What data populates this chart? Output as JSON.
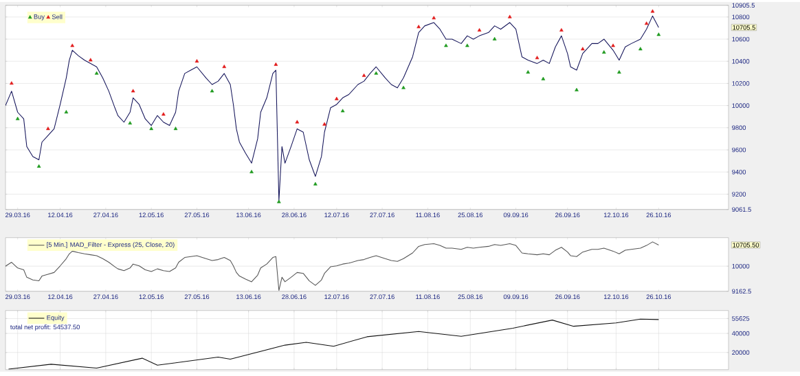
{
  "chart_data": [
    {
      "type": "line",
      "xlim": [
        "2016-03-25",
        "2016-11-18"
      ],
      "ylim": [
        9061.5,
        10905.5
      ],
      "xticks": [
        {
          "value": "2016-03-29",
          "label": "29.03.16"
        },
        {
          "value": "2016-04-12",
          "label": "12.04.16"
        },
        {
          "value": "2016-04-27",
          "label": "27.04.16"
        },
        {
          "value": "2016-05-12",
          "label": "12.05.16"
        },
        {
          "value": "2016-05-27",
          "label": "27.05.16"
        },
        {
          "value": "2016-06-13",
          "label": "13.06.16"
        },
        {
          "value": "2016-06-28",
          "label": "28.06.16"
        },
        {
          "value": "2016-07-12",
          "label": "12.07.16"
        },
        {
          "value": "2016-07-27",
          "label": "27.07.16"
        },
        {
          "value": "2016-08-11",
          "label": "11.08.16"
        },
        {
          "value": "2016-08-25",
          "label": "25.08.16"
        },
        {
          "value": "2016-09-09",
          "label": "09.09.16"
        },
        {
          "value": "2016-09-26",
          "label": "26.09.16"
        },
        {
          "value": "2016-10-12",
          "label": "12.10.16"
        },
        {
          "value": "2016-10-26",
          "label": "26.10.16"
        }
      ],
      "yticks": [
        9061.5,
        9200,
        9400,
        9600,
        9800,
        10000,
        10200,
        10400,
        10600,
        10800,
        10905.5
      ],
      "grid": "y",
      "legend": "top left",
      "annotations": [
        "10705.5"
      ],
      "series": [
        {
          "color": "#14145a",
          "x": [
            "2016-03-25",
            "2016-03-27",
            "2016-03-29",
            "2016-03-31",
            "2016-04-01",
            "2016-04-03",
            "2016-04-05",
            "2016-04-06",
            "2016-04-08",
            "2016-04-10",
            "2016-04-12",
            "2016-04-14",
            "2016-04-15",
            "2016-04-16",
            "2016-04-18",
            "2016-04-20",
            "2016-04-22",
            "2016-04-24",
            "2016-04-26",
            "2016-04-28",
            "2016-04-30",
            "2016-05-01",
            "2016-05-03",
            "2016-05-05",
            "2016-05-06",
            "2016-05-08",
            "2016-05-10",
            "2016-05-12",
            "2016-05-14",
            "2016-05-16",
            "2016-05-18",
            "2016-05-20",
            "2016-05-21",
            "2016-05-23",
            "2016-05-25",
            "2016-05-27",
            "2016-05-30",
            "2016-06-01",
            "2016-06-03",
            "2016-06-05",
            "2016-06-07",
            "2016-06-08",
            "2016-06-09",
            "2016-06-10",
            "2016-06-12",
            "2016-06-14",
            "2016-06-16",
            "2016-06-17",
            "2016-06-19",
            "2016-06-21",
            "2016-06-22",
            "2016-06-23",
            "2016-06-24",
            "2016-06-25",
            "2016-06-27",
            "2016-06-29",
            "2016-07-01",
            "2016-07-03",
            "2016-07-05",
            "2016-07-07",
            "2016-07-08",
            "2016-07-10",
            "2016-07-12",
            "2016-07-14",
            "2016-07-16",
            "2016-07-19",
            "2016-07-21",
            "2016-07-23",
            "2016-07-25",
            "2016-07-28",
            "2016-07-30",
            "2016-08-01",
            "2016-08-03",
            "2016-08-06",
            "2016-08-08",
            "2016-08-10",
            "2016-08-13",
            "2016-08-15",
            "2016-08-17",
            "2016-08-19",
            "2016-08-22",
            "2016-08-24",
            "2016-08-26",
            "2016-08-28",
            "2016-08-31",
            "2016-09-02",
            "2016-09-04",
            "2016-09-07",
            "2016-09-09",
            "2016-09-11",
            "2016-09-13",
            "2016-09-16",
            "2016-09-18",
            "2016-09-20",
            "2016-09-22",
            "2016-09-24",
            "2016-09-26",
            "2016-09-27",
            "2016-09-29",
            "2016-10-01",
            "2016-10-04",
            "2016-10-06",
            "2016-10-08",
            "2016-10-11",
            "2016-10-13",
            "2016-10-15",
            "2016-10-17",
            "2016-10-20",
            "2016-10-22",
            "2016-10-24",
            "2016-10-26"
          ],
          "values": [
            10000,
            10130,
            9940,
            9880,
            9630,
            9540,
            9510,
            9670,
            9730,
            9790,
            10010,
            10250,
            10410,
            10500,
            10450,
            10410,
            10380,
            10350,
            10250,
            10130,
            9980,
            9910,
            9850,
            9940,
            10070,
            10010,
            9880,
            9820,
            9910,
            9850,
            9820,
            9940,
            10130,
            10290,
            10320,
            10350,
            10250,
            10190,
            10220,
            10290,
            10190,
            10010,
            9790,
            9670,
            9570,
            9480,
            9700,
            9940,
            10070,
            10290,
            10320,
            9140,
            9630,
            9480,
            9630,
            9790,
            9760,
            9510,
            9360,
            9540,
            9760,
            9980,
            10010,
            10070,
            10100,
            10190,
            10220,
            10290,
            10350,
            10250,
            10190,
            10160,
            10250,
            10440,
            10660,
            10720,
            10750,
            10690,
            10600,
            10600,
            10560,
            10630,
            10600,
            10630,
            10660,
            10720,
            10690,
            10750,
            10690,
            10440,
            10410,
            10380,
            10410,
            10380,
            10530,
            10630,
            10470,
            10350,
            10320,
            10470,
            10560,
            10560,
            10600,
            10500,
            10410,
            10530,
            10560,
            10600,
            10690,
            10810,
            10705.5
          ]
        },
        {
          "name": "Buy",
          "type": "scatter",
          "marker": "triangle",
          "color": "#1f9a1f",
          "x": [
            "2016-03-29",
            "2016-04-05",
            "2016-04-14",
            "2016-04-24",
            "2016-05-05",
            "2016-05-12",
            "2016-05-20",
            "2016-06-01",
            "2016-06-14",
            "2016-06-23",
            "2016-07-05",
            "2016-07-14",
            "2016-07-25",
            "2016-08-03",
            "2016-08-17",
            "2016-08-24",
            "2016-09-02",
            "2016-09-13",
            "2016-09-18",
            "2016-09-29",
            "2016-10-08",
            "2016-10-13",
            "2016-10-20",
            "2016-10-26"
          ],
          "values": [
            9880,
            9450,
            9940,
            10290,
            9840,
            9790,
            9790,
            10130,
            9400,
            9130,
            9290,
            9950,
            10290,
            10160,
            10540,
            10540,
            10600,
            10300,
            10240,
            10140,
            10480,
            10300,
            10510,
            10640
          ]
        },
        {
          "name": "Sell",
          "type": "scatter",
          "marker": "triangle",
          "color": "#e21b1b",
          "x": [
            "2016-03-27",
            "2016-04-08",
            "2016-04-16",
            "2016-04-22",
            "2016-05-06",
            "2016-05-16",
            "2016-05-27",
            "2016-06-05",
            "2016-06-22",
            "2016-06-29",
            "2016-07-08",
            "2016-07-12",
            "2016-07-21",
            "2016-08-08",
            "2016-08-13",
            "2016-08-28",
            "2016-09-07",
            "2016-09-16",
            "2016-09-24",
            "2016-10-01",
            "2016-10-11",
            "2016-10-22",
            "2016-10-24"
          ],
          "values": [
            10200,
            9790,
            10540,
            10410,
            10130,
            9920,
            10400,
            10350,
            10370,
            9850,
            9830,
            10060,
            10270,
            10710,
            10790,
            10680,
            10800,
            10430,
            10680,
            10510,
            10540,
            10740,
            10850
          ]
        }
      ]
    },
    {
      "type": "line",
      "xlim": [
        "2016-03-25",
        "2016-11-18"
      ],
      "ylim": [
        9162.5,
        10950
      ],
      "xticks": [
        {
          "value": "2016-03-29",
          "label": "29.03.16"
        },
        {
          "value": "2016-04-12",
          "label": "12.04.16"
        },
        {
          "value": "2016-04-27",
          "label": "27.04.16"
        },
        {
          "value": "2016-05-12",
          "label": "12.05.16"
        },
        {
          "value": "2016-05-27",
          "label": "27.05.16"
        },
        {
          "value": "2016-06-13",
          "label": "13.06.16"
        },
        {
          "value": "2016-06-28",
          "label": "28.06.16"
        },
        {
          "value": "2016-07-12",
          "label": "12.07.16"
        },
        {
          "value": "2016-07-27",
          "label": "27.07.16"
        },
        {
          "value": "2016-08-11",
          "label": "11.08.16"
        },
        {
          "value": "2016-08-25",
          "label": "25.08.16"
        },
        {
          "value": "2016-09-09",
          "label": "09.09.16"
        },
        {
          "value": "2016-09-26",
          "label": "26.09.16"
        },
        {
          "value": "2016-10-12",
          "label": "12.10.16"
        },
        {
          "value": "2016-10-26",
          "label": "26.10.16"
        }
      ],
      "yticks": [
        9162.5,
        10000
      ],
      "grid": "y",
      "legend": "top left",
      "annotations": [
        "10705.50"
      ],
      "series": [
        {
          "name": "[5 Min.] MAD_Filter - Express (25, Close, 20)",
          "color": "#555555",
          "x": [
            "2016-03-25",
            "2016-03-27",
            "2016-03-29",
            "2016-03-31",
            "2016-04-01",
            "2016-04-03",
            "2016-04-05",
            "2016-04-06",
            "2016-04-08",
            "2016-04-10",
            "2016-04-12",
            "2016-04-14",
            "2016-04-15",
            "2016-04-16",
            "2016-04-18",
            "2016-04-20",
            "2016-04-22",
            "2016-04-24",
            "2016-04-26",
            "2016-04-28",
            "2016-04-30",
            "2016-05-01",
            "2016-05-03",
            "2016-05-05",
            "2016-05-06",
            "2016-05-08",
            "2016-05-10",
            "2016-05-12",
            "2016-05-14",
            "2016-05-16",
            "2016-05-18",
            "2016-05-20",
            "2016-05-21",
            "2016-05-23",
            "2016-05-25",
            "2016-05-27",
            "2016-05-30",
            "2016-06-01",
            "2016-06-03",
            "2016-06-05",
            "2016-06-07",
            "2016-06-08",
            "2016-06-09",
            "2016-06-10",
            "2016-06-12",
            "2016-06-14",
            "2016-06-16",
            "2016-06-17",
            "2016-06-19",
            "2016-06-21",
            "2016-06-22",
            "2016-06-23",
            "2016-06-24",
            "2016-06-25",
            "2016-06-27",
            "2016-06-29",
            "2016-07-01",
            "2016-07-03",
            "2016-07-05",
            "2016-07-07",
            "2016-07-08",
            "2016-07-10",
            "2016-07-12",
            "2016-07-14",
            "2016-07-16",
            "2016-07-19",
            "2016-07-21",
            "2016-07-23",
            "2016-07-25",
            "2016-07-28",
            "2016-07-30",
            "2016-08-01",
            "2016-08-03",
            "2016-08-06",
            "2016-08-08",
            "2016-08-10",
            "2016-08-13",
            "2016-08-15",
            "2016-08-17",
            "2016-08-19",
            "2016-08-22",
            "2016-08-24",
            "2016-08-26",
            "2016-08-28",
            "2016-08-31",
            "2016-09-02",
            "2016-09-04",
            "2016-09-07",
            "2016-09-09",
            "2016-09-11",
            "2016-09-13",
            "2016-09-16",
            "2016-09-18",
            "2016-09-20",
            "2016-09-22",
            "2016-09-24",
            "2016-09-26",
            "2016-09-27",
            "2016-09-29",
            "2016-10-01",
            "2016-10-04",
            "2016-10-06",
            "2016-10-08",
            "2016-10-11",
            "2016-10-13",
            "2016-10-15",
            "2016-10-17",
            "2016-10-20",
            "2016-10-22",
            "2016-10-24",
            "2016-10-26"
          ],
          "values": [
            10000,
            10130,
            9940,
            9880,
            9630,
            9540,
            9510,
            9670,
            9730,
            9790,
            10010,
            10250,
            10410,
            10500,
            10450,
            10410,
            10380,
            10350,
            10250,
            10130,
            9980,
            9910,
            9850,
            9940,
            10070,
            10010,
            9880,
            9820,
            9910,
            9850,
            9820,
            9940,
            10130,
            10290,
            10320,
            10350,
            10250,
            10190,
            10220,
            10290,
            10190,
            10010,
            9790,
            9670,
            9570,
            9480,
            9700,
            9940,
            10070,
            10290,
            10320,
            9190,
            9630,
            9480,
            9630,
            9790,
            9760,
            9510,
            9360,
            9540,
            9760,
            9980,
            10010,
            10070,
            10100,
            10190,
            10220,
            10290,
            10350,
            10250,
            10190,
            10160,
            10250,
            10440,
            10660,
            10720,
            10750,
            10690,
            10600,
            10600,
            10560,
            10630,
            10600,
            10630,
            10660,
            10720,
            10690,
            10750,
            10690,
            10440,
            10410,
            10380,
            10410,
            10380,
            10530,
            10630,
            10470,
            10350,
            10320,
            10470,
            10560,
            10560,
            10600,
            10500,
            10410,
            10530,
            10560,
            10600,
            10690,
            10810,
            10705.5
          ]
        }
      ]
    },
    {
      "type": "line",
      "xlim": [
        "2016-03-25",
        "2016-11-18"
      ],
      "ylim": [
        2000,
        64000
      ],
      "xticks": [
        {
          "value": "2016-03-29",
          "label": null
        },
        {
          "value": "2016-04-12",
          "label": null
        },
        {
          "value": "2016-04-27",
          "label": null
        },
        {
          "value": "2016-05-12",
          "label": null
        },
        {
          "value": "2016-05-27",
          "label": null
        },
        {
          "value": "2016-06-13",
          "label": null
        },
        {
          "value": "2016-06-28",
          "label": null
        },
        {
          "value": "2016-07-12",
          "label": null
        },
        {
          "value": "2016-07-27",
          "label": null
        },
        {
          "value": "2016-08-11",
          "label": null
        },
        {
          "value": "2016-08-25",
          "label": null
        },
        {
          "value": "2016-09-09",
          "label": null
        },
        {
          "value": "2016-09-26",
          "label": null
        },
        {
          "value": "2016-10-12",
          "label": null
        },
        {
          "value": "2016-10-26",
          "label": null
        }
      ],
      "yticks": [
        20000,
        40000,
        55625
      ],
      "grid": true,
      "legend": "top left",
      "tick_labels": "y",
      "annotations": [
        "total net profit: 54537.50"
      ],
      "series": [
        {
          "name": "Equity",
          "color": "#111111",
          "x": [
            "2016-03-26",
            "2016-04-09",
            "2016-04-24",
            "2016-05-09",
            "2016-05-14",
            "2016-06-03",
            "2016-06-07",
            "2016-06-25",
            "2016-07-02",
            "2016-07-11",
            "2016-07-22",
            "2016-08-08",
            "2016-08-22",
            "2016-09-08",
            "2016-09-21",
            "2016-09-28",
            "2016-10-12",
            "2016-10-20",
            "2016-10-26"
          ],
          "values": [
            2500,
            7700,
            3600,
            14000,
            6700,
            15100,
            13000,
            27700,
            30700,
            26500,
            36500,
            42000,
            37000,
            45500,
            54000,
            47500,
            51000,
            55000,
            54537.5
          ]
        }
      ]
    }
  ]
}
